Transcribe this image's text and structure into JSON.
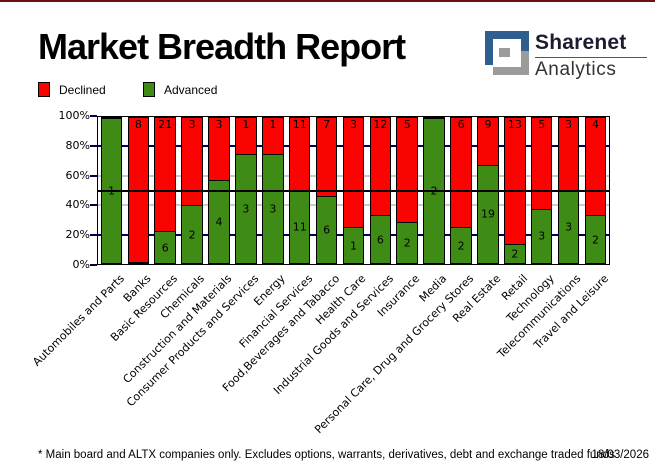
{
  "header": {
    "title": "Market Breadth Report",
    "logo": {
      "line1": "Sharenet",
      "line2": "Analytics",
      "icon": "sharenet-s-maze-logo",
      "blue": "#2f5f8e",
      "gray": "#9b9b9b"
    }
  },
  "legend": [
    {
      "label": "Declined",
      "color": "#f90400"
    },
    {
      "label": "Advanced",
      "color": "#3e8c15"
    }
  ],
  "footer": {
    "note": "* Main board and ALTX companies only. Excludes options, warrants, derivatives, debt and exchange traded funds",
    "date": "18/03/2026"
  },
  "chart_data": {
    "type": "bar",
    "stacked": true,
    "orientation": "vertical",
    "normalized_to_percent": true,
    "title": "",
    "xlabel": "",
    "ylabel": "",
    "ylim": [
      0,
      100
    ],
    "y_axis": {
      "ticks": [
        "0%",
        "20%",
        "40%",
        "60%",
        "80%",
        "100%"
      ]
    },
    "gridlines_pct": [
      20,
      40,
      60,
      80
    ],
    "reference_line_pct": 50,
    "value_labels_shown": true,
    "categories": [
      "Automobiles and Parts",
      "Banks",
      "Basic Resources",
      "Chemicals",
      "Construction and Materials",
      "Consumer Products and Services",
      "Energy",
      "Financial Services",
      "Food,Beverages and Tabacco",
      "Health Care",
      "Industrial Goods and Services",
      "Insurance",
      "Media",
      "Personal Care, Drug and Grocery Stores",
      "Real Estate",
      "Retail",
      "Technology",
      "Telecommunications",
      "Travel and Leisure"
    ],
    "series": [
      {
        "name": "Declined",
        "color": "#f90400",
        "values": [
          0,
          8,
          21,
          3,
          3,
          1,
          1,
          11,
          7,
          3,
          12,
          5,
          0,
          6,
          9,
          13,
          5,
          3,
          4
        ]
      },
      {
        "name": "Advanced",
        "color": "#3e8c15",
        "values": [
          1,
          0,
          6,
          2,
          4,
          3,
          3,
          11,
          6,
          1,
          6,
          2,
          2,
          2,
          19,
          2,
          3,
          3,
          2
        ]
      }
    ]
  }
}
